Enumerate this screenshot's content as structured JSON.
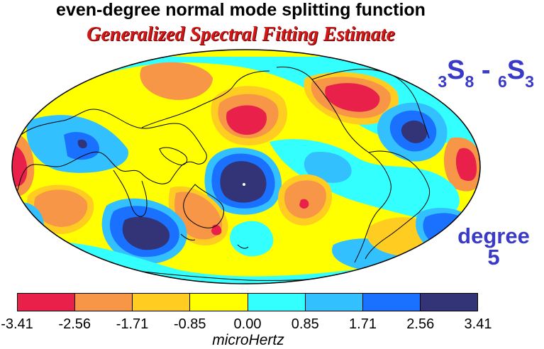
{
  "title": "even-degree normal mode splitting function",
  "subtitle": "Generalized Spectral Fitting Estimate",
  "mode": {
    "n1": "3",
    "letter1": "S",
    "l1": "8",
    "separator": " - ",
    "n2": "6",
    "letter2": "S",
    "l2": "3"
  },
  "degree": {
    "word": "degree",
    "value": "5"
  },
  "colorbar": {
    "colors": [
      "#e8204a",
      "#f79646",
      "#ffcc22",
      "#ffff00",
      "#33ffff",
      "#33c0ff",
      "#1a70ff",
      "#333377"
    ],
    "ticks": [
      "-3.41",
      "-2.56",
      "-1.71",
      "-0.85",
      "0.00",
      "0.85",
      "1.71",
      "2.56",
      "3.41"
    ],
    "units": "microHertz"
  },
  "map": {
    "projection": "Mollweide",
    "background_color": "#ffff00"
  }
}
